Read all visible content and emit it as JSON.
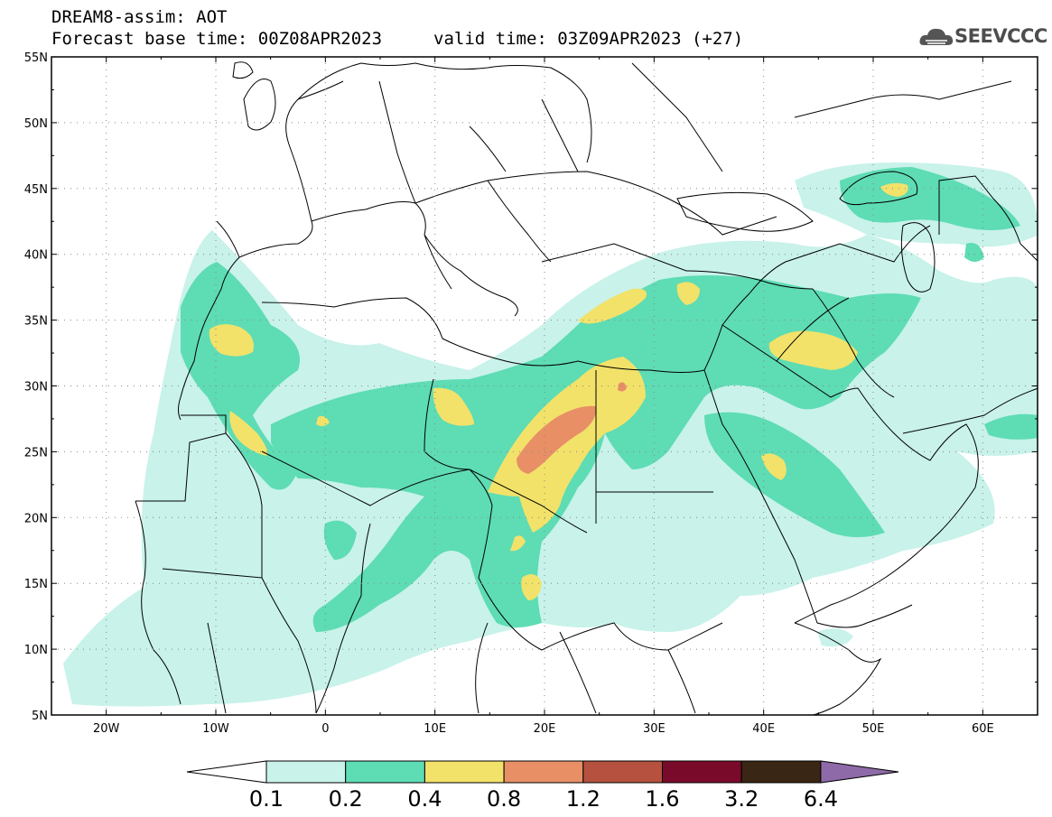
{
  "header": {
    "title_line1": "DREAM8-assim: AOT",
    "base_time": "Forecast base time: 00Z08APR2023",
    "valid_time": "valid time: 03Z09APR2023 (+27)",
    "logo_text": "SEEVCCC"
  },
  "map": {
    "lon_range": [
      -25,
      65
    ],
    "lat_range": [
      5,
      55
    ],
    "lat_labels": [
      "55N",
      "50N",
      "45N",
      "40N",
      "35N",
      "30N",
      "25N",
      "20N",
      "15N",
      "10N",
      "5N"
    ],
    "lat_values": [
      55,
      50,
      45,
      40,
      35,
      30,
      25,
      20,
      15,
      10,
      5
    ],
    "lon_labels": [
      "20W",
      "10W",
      "0",
      "10E",
      "20E",
      "30E",
      "40E",
      "50E",
      "60E"
    ],
    "lon_values": [
      -20,
      -10,
      0,
      10,
      20,
      30,
      40,
      50,
      60
    ],
    "gridlines": true
  },
  "colorbar": {
    "levels": [
      "0.1",
      "0.2",
      "0.4",
      "0.8",
      "1.2",
      "1.6",
      "3.2",
      "6.4"
    ],
    "colors": [
      "#c8f2ea",
      "#5edcb4",
      "#f2e26a",
      "#e88f66",
      "#b5513e",
      "#7a0a2a",
      "#3a2614",
      "#8e6aa8"
    ],
    "under_color": "#ffffff"
  },
  "field_regions": [
    {
      "name": "northwest-africa",
      "level": 1
    },
    {
      "name": "sahara-band",
      "level": 2
    },
    {
      "name": "libya-egypt-plume",
      "level": 3
    },
    {
      "name": "libya-core",
      "level": 4
    },
    {
      "name": "mediterranean-plume",
      "level": 2
    },
    {
      "name": "arabia",
      "level": 1
    },
    {
      "name": "iraq",
      "level": 3
    },
    {
      "name": "caspian",
      "level": 2
    }
  ]
}
